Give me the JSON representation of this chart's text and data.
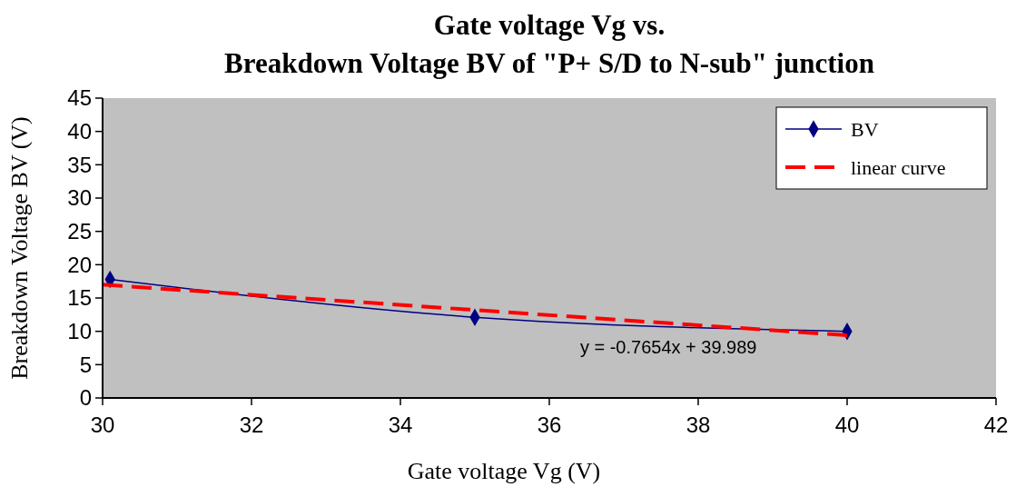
{
  "chart_data": {
    "type": "line",
    "title": "Gate voltage Vg vs.\nBreakdown Voltage BV of \"P+ S/D to N-sub\" junction",
    "xlabel": "Gate voltage Vg (V)",
    "ylabel": "Breakdown Voltage  BV (V)",
    "series": [
      {
        "name": "BV",
        "color": "#000080",
        "x": [
          30.1,
          35,
          40
        ],
        "values": [
          17.8,
          12.1,
          10.0
        ],
        "marker": "diamond",
        "line_style": "solid"
      },
      {
        "name": "linear curve",
        "color": "#ff0000",
        "x": [
          30,
          40
        ],
        "values": [
          17.0,
          9.4
        ],
        "marker": "none",
        "line_style": "dashed"
      }
    ],
    "xlim": [
      30,
      42
    ],
    "xticks": [
      30,
      32,
      34,
      36,
      38,
      40,
      42
    ],
    "ylim": [
      0,
      45
    ],
    "yticks": [
      0,
      5,
      10,
      15,
      20,
      25,
      30,
      35,
      40,
      45
    ],
    "annotations": [
      "y = -0.7654x + 39.989"
    ],
    "grid": false,
    "legend": "top right"
  }
}
